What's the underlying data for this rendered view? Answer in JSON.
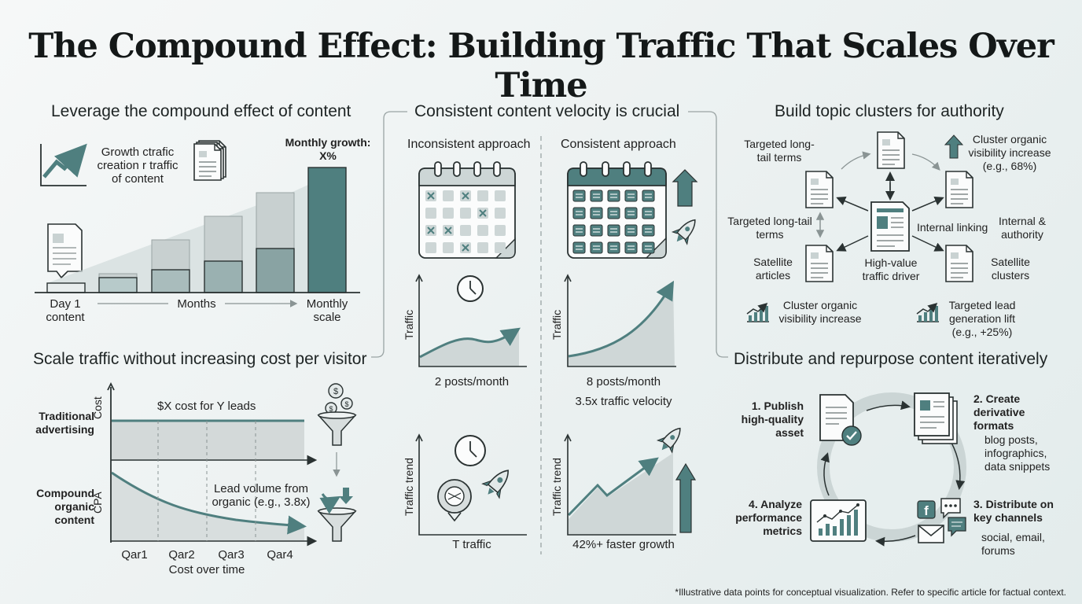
{
  "title": "The Compound Effect: Building Traffic That Scales Over Time",
  "footnote": "*Illustrative data points for conceptual visualization. Refer to specific article for factual context.",
  "colors": {
    "teal": "#4f7f7f",
    "teal_light": "#b7caca",
    "gray_bar": "#c8d0d0",
    "ink": "#2a3232"
  },
  "panel_compound": {
    "heading": "Leverage the compound effect of content",
    "icon_text": "Growth ctrafic creation r traffic of content",
    "monthly_growth_label": "Monthly growth:",
    "monthly_growth_value": "X%",
    "axis_start": "Day 1 content",
    "axis_middle": "Months",
    "axis_end": "Monthly scale"
  },
  "panel_cost": {
    "heading": "Scale traffic without increasing cost per visitor",
    "traditional_label": "Traditional advertising",
    "cost_axis": "Cost",
    "cost_note": "$X cost for Y leads",
    "compound_label": "Compound organic content",
    "cpa_axis": "CPA",
    "lead_note": "Lead volume from organic (e.g., 3.8x)",
    "quarters": [
      "Qar1",
      "Qar2",
      "Qar3",
      "Qar4"
    ],
    "xlabel": "Cost over time"
  },
  "panel_velocity": {
    "heading": "Consistent content velocity is crucial",
    "inconsistent": {
      "heading": "Inconsistent approach",
      "traffic_axis": "Traffic",
      "posts": "2 posts/month",
      "trend_axis": "Traffic trend",
      "trend_caption": "T traffic"
    },
    "consistent": {
      "heading": "Consistent approach",
      "traffic_axis": "Traffic",
      "posts": "8 posts/month",
      "velocity": "3.5x traffic velocity",
      "trend_axis": "Traffic trend",
      "trend_caption": "42%+ faster growth"
    }
  },
  "panel_clusters": {
    "heading": "Build topic clusters for authority",
    "longtail_top": "Targeted long-tail terms",
    "visibility_top": "Cluster organic visibility increase (e.g., 68%)",
    "longtail_mid": "Targeted long-tail terms",
    "internal_linking": "Internal linking",
    "internal_authority": "Internal & authority",
    "satellite_articles": "Satellite articles",
    "high_value": "High-value traffic driver",
    "satellite_clusters": "Satellite clusters",
    "visibility_bottom": "Cluster organic visibility increase",
    "lead_lift": "Targeted lead generation lift (e.g., +25%)"
  },
  "panel_distribute": {
    "heading": "Distribute and repurpose content iteratively",
    "step1": "1. Publish high-quality asset",
    "step2": "2. Create derivative formats",
    "step2_detail": "blog posts, infographics, data snippets",
    "step3": "3. Distribute on key channels",
    "step3_detail": "social, email, forums",
    "step4": "4. Analyze performance metrics"
  }
}
